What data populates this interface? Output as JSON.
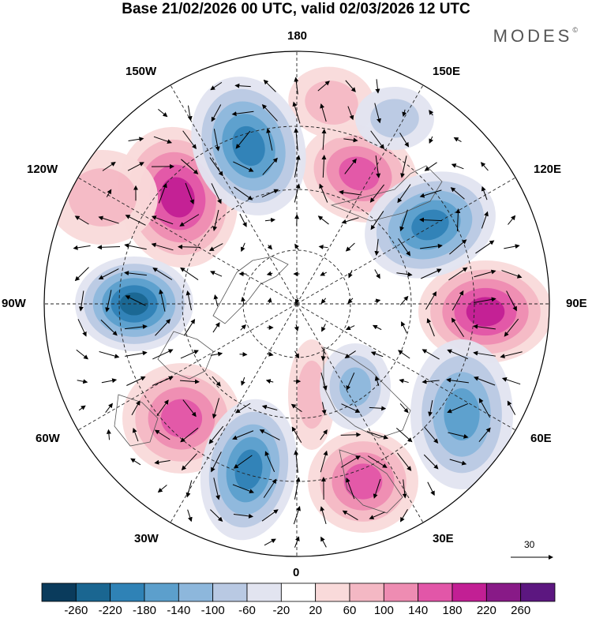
{
  "title": "Base 21/02/2026 00 UTC, valid 02/03/2026 12 UTC",
  "brand": {
    "name": "MODES",
    "mark": "©"
  },
  "longitude_labels": {
    "top": "180",
    "bottom": "0",
    "left": "90W",
    "right": "90E",
    "upper_left": "150W",
    "upper_right": "150E",
    "mid_left": "120W",
    "mid_right": "120E",
    "lower_left": "60W",
    "lower_right": "60E",
    "bottom_left": "30W",
    "bottom_right": "30E"
  },
  "reference_vector": {
    "label": "30"
  },
  "colorbar": {
    "labels": [
      "-260",
      "-220",
      "-180",
      "-140",
      "-100",
      "-60",
      "-20",
      "20",
      "60",
      "100",
      "140",
      "180",
      "220",
      "260"
    ],
    "colors": [
      "#0a3b5c",
      "#1a6691",
      "#2f82b6",
      "#5c9fcc",
      "#8db7dc",
      "#b9c9e3",
      "#e2e4f0",
      "#ffffff",
      "#f9dada",
      "#f4b8c4",
      "#ee8cb2",
      "#e256a8",
      "#c21f94",
      "#881a87",
      "#5c1780"
    ]
  },
  "map_features": {
    "positive_anomalies": [
      {
        "name": "anomaly-high-120w",
        "value": 200
      },
      {
        "name": "anomaly-high-160e",
        "value": 160
      },
      {
        "name": "anomaly-high-170e",
        "value": 80
      },
      {
        "name": "anomaly-high-95e",
        "value": 200
      },
      {
        "name": "anomaly-high-50w",
        "value": 140
      },
      {
        "name": "anomaly-high-30e",
        "value": 140
      },
      {
        "name": "anomaly-high-10e",
        "value": 60
      },
      {
        "name": "anomaly-high-150w-edge",
        "value": 60
      }
    ],
    "negative_anomalies": [
      {
        "name": "anomaly-low-160w",
        "value": -200
      },
      {
        "name": "anomaly-low-120e",
        "value": -180
      },
      {
        "name": "anomaly-low-90w",
        "value": -220
      },
      {
        "name": "anomaly-low-60e",
        "value": -140
      },
      {
        "name": "anomaly-low-20w",
        "value": -200
      },
      {
        "name": "anomaly-low-40e-inner",
        "value": -100
      },
      {
        "name": "anomaly-low-150e-edge",
        "value": -60
      }
    ]
  }
}
